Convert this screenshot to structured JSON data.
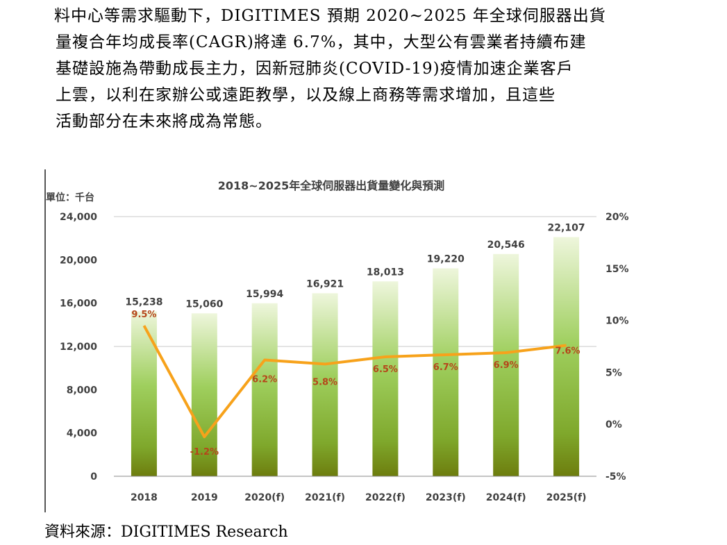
{
  "paragraph": {
    "lines": [
      "料中心等需求驅動下，DIGITIMES 預期 2020~2025 年全球伺服器出貨",
      "量複合年均成長率(CAGR)將達 6.7%，其中，大型公有雲業者持續布建",
      "基礎設施為帶動成長主力，因新冠肺炎(COVID-19)疫情加速企業客戶",
      "上雲，以利在家辦公或遠距教學，以及線上商務等需求增加，且這些",
      "活動部分在未來將成為常態。"
    ]
  },
  "chart_data": {
    "type": "bar",
    "title": "2018~2025年全球伺服器出貨量變化與預測",
    "unit_label": "單位：千台",
    "categories": [
      "2018",
      "2019",
      "2020(f)",
      "2021(f)",
      "2022(f)",
      "2023(f)",
      "2024(f)",
      "2025(f)"
    ],
    "series": [
      {
        "type": "bar",
        "values": [
          15238,
          15060,
          15994,
          16921,
          18013,
          19220,
          20546,
          22107
        ],
        "labels": [
          "15,238",
          "15,060",
          "15,994",
          "16,921",
          "18,013",
          "19,220",
          "20,546",
          "22,107"
        ]
      },
      {
        "type": "line",
        "axis": "right",
        "values": [
          9.5,
          -1.2,
          6.2,
          5.8,
          6.5,
          6.7,
          6.9,
          7.6
        ],
        "labels": [
          "9.5%",
          "-1.2%",
          "6.2%",
          "5.8%",
          "6.5%",
          "6.7%",
          "6.9%",
          "7.6%"
        ]
      }
    ],
    "y_left": {
      "ticks": [
        "0",
        "4,000",
        "8,000",
        "12,000",
        "16,000",
        "20,000",
        "24,000"
      ],
      "values": [
        0,
        4000,
        8000,
        12000,
        16000,
        20000,
        24000
      ],
      "ylim": [
        0,
        24000
      ]
    },
    "y_right": {
      "ticks": [
        "-5%",
        "0%",
        "5%",
        "10%",
        "15%",
        "20%"
      ],
      "values": [
        -5,
        0,
        5,
        10,
        15,
        20
      ],
      "ylim": [
        -5,
        20
      ]
    },
    "grid": "horizontal gridlines at 12,000 and 24,000",
    "colors": {
      "bar_top": "#e8f2d0",
      "bar_mid": "#8cc34a",
      "bar_bottom": "#7a8a10",
      "line": "#f7a21b",
      "pct_label": "#b5461a",
      "text": "#404040"
    }
  },
  "source": "資料來源：DIGITIMES Research"
}
